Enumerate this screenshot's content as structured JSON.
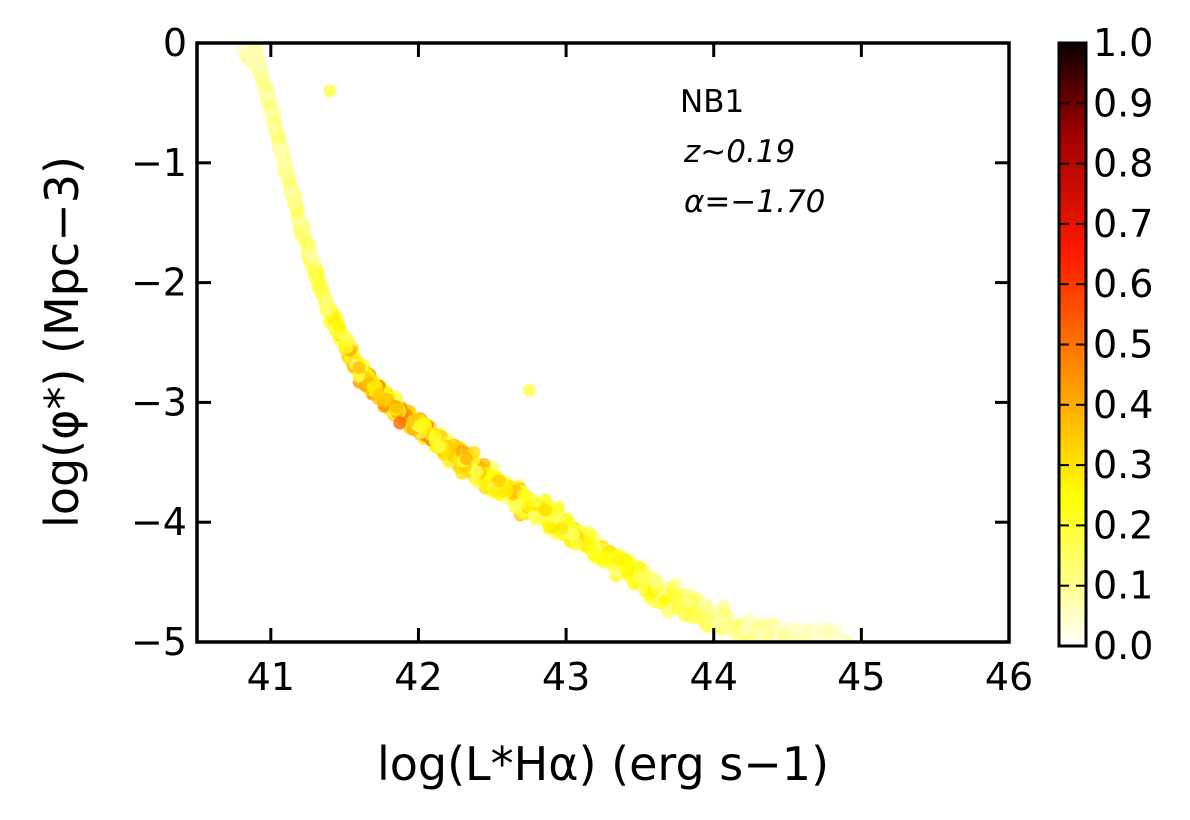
{
  "chart_data": {
    "type": "scatter",
    "title": "",
    "xlabel": "log(L*Hα) (erg s−1)",
    "ylabel": "log(φ*) (Mpc−3)",
    "xlim": [
      40.5,
      46
    ],
    "ylim": [
      -5,
      0
    ],
    "x_ticks": [
      "41",
      "42",
      "43",
      "44",
      "45",
      "46"
    ],
    "y_ticks": [
      "0",
      "−1",
      "−2",
      "−3",
      "−4",
      "−5"
    ],
    "annotations": [
      "NB1",
      "z~0.19",
      "α=−1.70"
    ],
    "grid": false,
    "colorbar": {
      "ticks": [
        "0.0",
        "0.1",
        "0.2",
        "0.3",
        "0.4",
        "0.5",
        "0.6",
        "0.7",
        "0.8",
        "0.9",
        "1.0"
      ],
      "range": [
        0,
        1
      ],
      "colormap": "hot_r"
    },
    "series": [
      {
        "description_of_trend": "dense band of points",
        "ridge": {
          "x": [
            40.9,
            41.0,
            41.1,
            41.2,
            41.3,
            41.4,
            41.5,
            41.6,
            41.8,
            42.0,
            42.2,
            42.5,
            42.8,
            43.0,
            43.3,
            43.6,
            43.9,
            44.2,
            44.6,
            44.9
          ],
          "y": [
            -0.1,
            -0.55,
            -1.05,
            -1.5,
            -1.9,
            -2.25,
            -2.5,
            -2.75,
            -3.0,
            -3.2,
            -3.4,
            -3.65,
            -3.9,
            -4.05,
            -4.3,
            -4.55,
            -4.75,
            -4.9,
            -4.98,
            -5.0
          ]
        },
        "density": {
          "x": [
            41.0,
            41.3,
            41.6,
            41.9,
            42.2,
            42.5,
            42.8,
            43.1,
            43.5,
            44.0,
            44.5
          ],
          "value": [
            0.12,
            0.2,
            0.42,
            0.5,
            0.42,
            0.36,
            0.32,
            0.3,
            0.26,
            0.16,
            0.08
          ]
        },
        "outliers": [
          {
            "x": 41.4,
            "y": -0.4
          },
          {
            "x": 42.75,
            "y": -2.9
          }
        ]
      }
    ]
  }
}
